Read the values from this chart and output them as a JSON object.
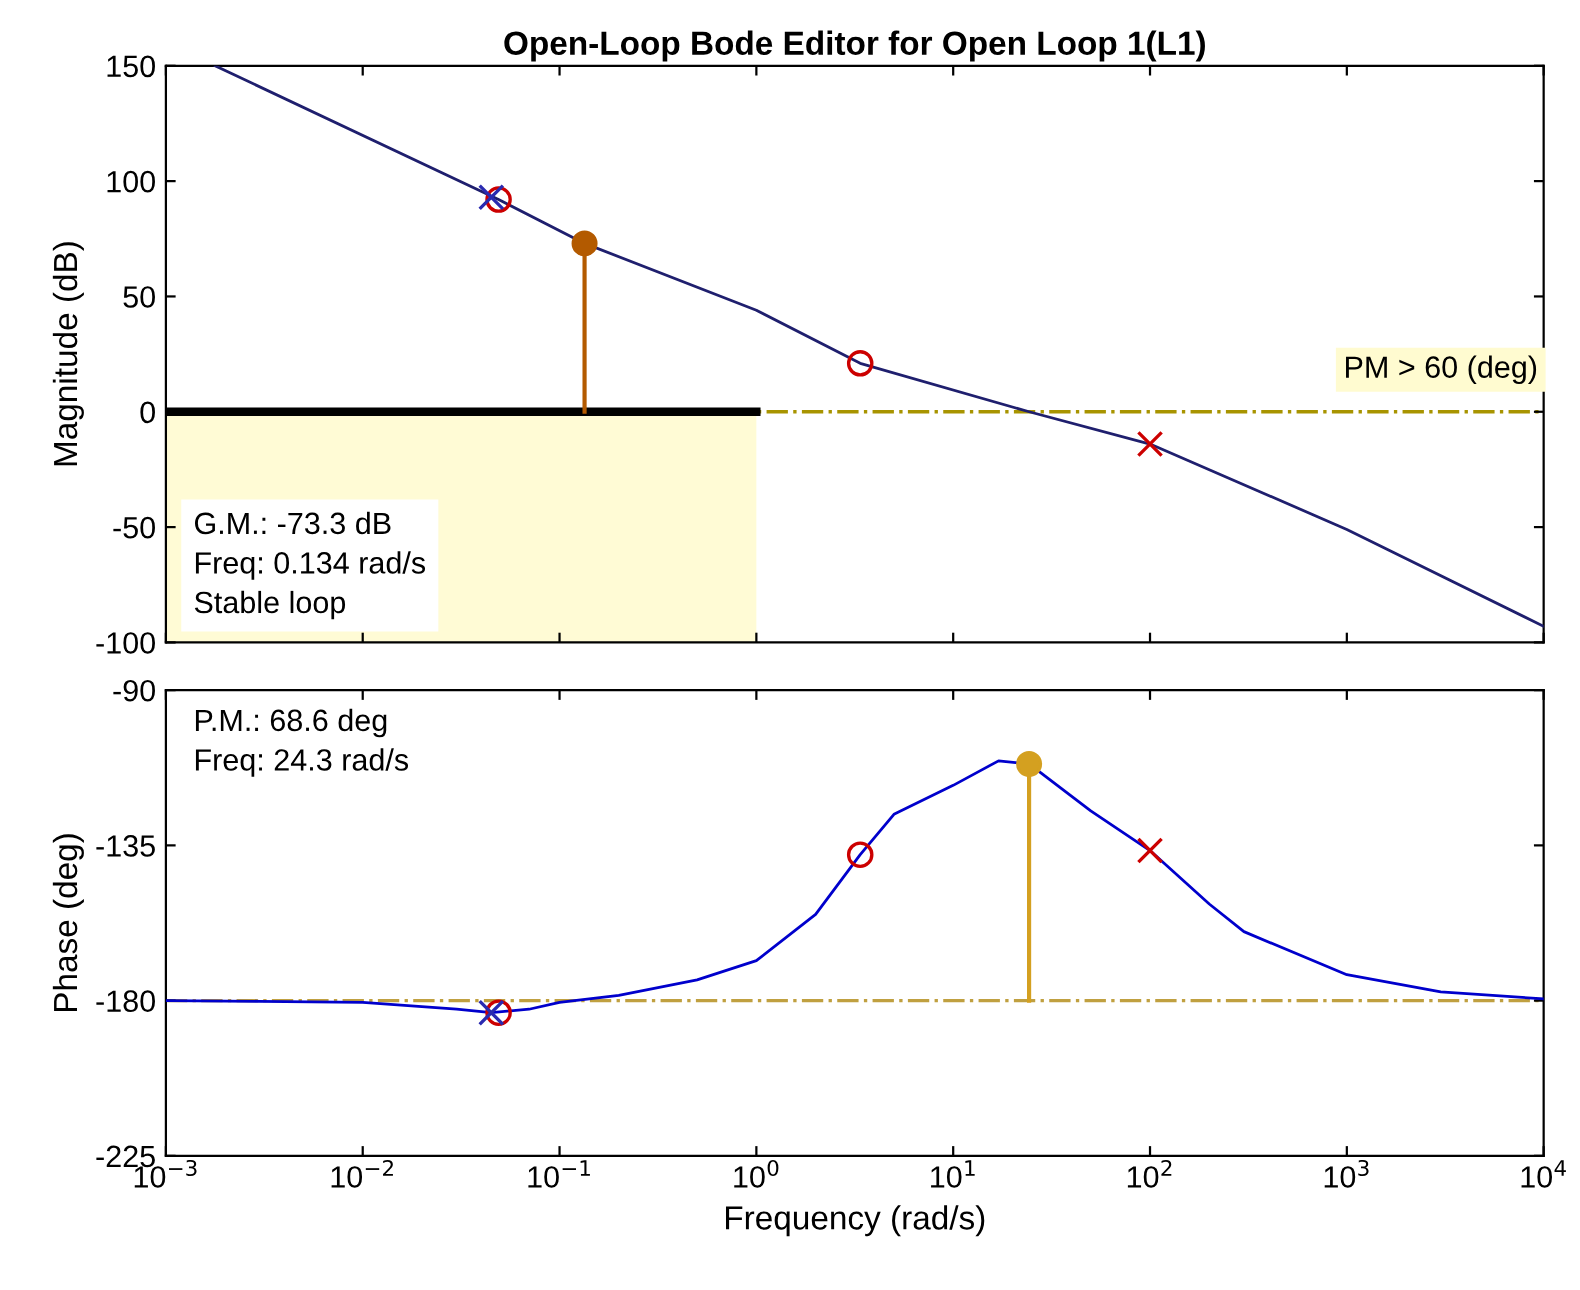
{
  "chart_data": [
    {
      "type": "line",
      "title": "Open-Loop Bode Editor for Open Loop 1(L1)",
      "ylabel": "Magnitude (dB)",
      "log": "x",
      "xlim": [
        0.001,
        10000
      ],
      "xticks": [
        {
          "value": 0.001,
          "label": null
        },
        {
          "value": 0.01,
          "label": null
        },
        {
          "value": 0.1,
          "label": null
        },
        {
          "value": 1,
          "label": null
        },
        {
          "value": 10,
          "label": null
        },
        {
          "value": 100,
          "label": null
        },
        {
          "value": 1000,
          "label": null
        },
        {
          "value": 10000,
          "label": null
        }
      ],
      "ylim": [
        -100,
        150
      ],
      "yticks": [
        -100,
        -50,
        0,
        50,
        100,
        150
      ],
      "tick_labels": "y",
      "grid": false,
      "legend": false,
      "series": [
        {
          "color": "#1f1f6e",
          "x": [
            0.00178,
            0.049,
            0.134,
            1,
            3.37,
            24.3,
            100,
            1000,
            10000
          ],
          "values": [
            150,
            92,
            73,
            44,
            21,
            0,
            -14,
            -51,
            -93
          ]
        },
        {
          "type": "line",
          "color": "#000000",
          "x": [
            0.001,
            1
          ],
          "values": [
            0,
            0
          ]
        },
        {
          "type": "scatter",
          "marker": "circle",
          "color": "#cc0000",
          "x": [
            0.049,
            3.37
          ],
          "values": [
            92,
            21
          ]
        },
        {
          "type": "scatter",
          "marker": "cross",
          "color": "#cc0000",
          "x": [
            100
          ],
          "values": [
            -14
          ]
        },
        {
          "type": "scatter",
          "marker": "cross",
          "color": "#2a2ab0",
          "x": [
            0.045
          ],
          "values": [
            93
          ]
        },
        {
          "type": "lollipop",
          "color": "#b35a00",
          "x": [
            0.134
          ],
          "values": [
            73
          ]
        }
      ],
      "ref_lines": [
        {
          "axis": "y",
          "value": 0,
          "color": "#a89400",
          "line_style": "dashdot"
        }
      ],
      "bands": [
        {
          "axis": "x",
          "from": 0.001,
          "to": 1,
          "color": "#fffbd5"
        }
      ],
      "annotations": [
        {
          "text": "PM > 60 (deg)",
          "x": 3000,
          "y": 0
        },
        "G.M.: -73.3 dB\nFreq: 0.134 rad/s\nStable loop"
      ]
    },
    {
      "type": "line",
      "xlabel": "Frequency (rad/s)",
      "ylabel": "Phase (deg)",
      "log": "x",
      "xlim": [
        0.001,
        10000
      ],
      "xticks": [
        {
          "value": 0.001,
          "label": "10$^{−3}$"
        },
        {
          "value": 0.01,
          "label": "10$^{−2}$"
        },
        {
          "value": 0.1,
          "label": "10$^{−1}$"
        },
        {
          "value": 1,
          "label": "10$^{0}$"
        },
        {
          "value": 10,
          "label": "10$^{1}$"
        },
        {
          "value": 100,
          "label": "10$^{2}$"
        },
        {
          "value": 1000,
          "label": "10$^{3}$"
        },
        {
          "value": 10000,
          "label": "10$^{4}$"
        }
      ],
      "ylim": [
        -225,
        -90
      ],
      "yticks": [
        -225,
        -180,
        -135,
        -90
      ],
      "grid": false,
      "legend": false,
      "series": [
        {
          "color": "#0000cc",
          "x": [
            0.001,
            0.003,
            0.01,
            0.03,
            0.045,
            0.07,
            0.1,
            0.2,
            0.5,
            1,
            2,
            3.37,
            5,
            10,
            17,
            24.3,
            50,
            100,
            200,
            300,
            1000,
            3000,
            10000
          ],
          "values": [
            -180,
            -180.2,
            -180.5,
            -182.5,
            -183.5,
            -182.5,
            -180.5,
            -178.5,
            -174,
            -168.4,
            -155,
            -137.7,
            -126,
            -117.6,
            -110.5,
            -111.4,
            -125,
            -136.5,
            -152,
            -160,
            -172.5,
            -177.5,
            -179.5
          ]
        },
        {
          "type": "scatter",
          "marker": "circle",
          "color": "#cc0000",
          "x": [
            0.049,
            3.37
          ],
          "values": [
            -183.5,
            -137.7
          ]
        },
        {
          "type": "scatter",
          "marker": "cross",
          "color": "#cc0000",
          "x": [
            100
          ],
          "values": [
            -136.5
          ]
        },
        {
          "type": "scatter",
          "marker": "cross",
          "color": "#2a2ab0",
          "x": [
            0.045
          ],
          "values": [
            -183.5
          ]
        },
        {
          "type": "lollipop",
          "color": "#d4a020",
          "x": [
            24.3
          ],
          "values": [
            -111.4
          ]
        }
      ],
      "ref_lines": [
        {
          "axis": "y",
          "value": -180,
          "color": "#c0a040",
          "line_style": "dashdot"
        }
      ],
      "annotations": [
        "P.M.: 68.6 deg\nFreq: 24.3 rad/s"
      ]
    }
  ]
}
